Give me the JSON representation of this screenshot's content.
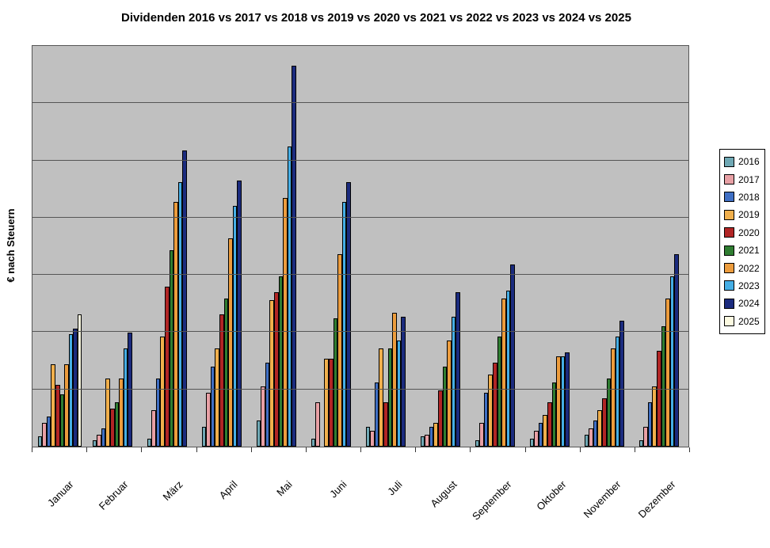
{
  "title": "Dividenden 2016 vs 2017 vs 2018 vs 2019 vs 2020 vs 2021 vs 2022 vs 2023 vs 2024 vs 2025",
  "y_axis_label": "€ nach Steuern",
  "colors": {
    "plot_background": "#C0C0C0",
    "gridline": "#555555",
    "bar_border": "#000000",
    "axis": "#333333",
    "legend_border": "#000000",
    "page_background": "#FFFFFF"
  },
  "chart_data": {
    "type": "bar",
    "title": "Dividenden 2016 vs 2017 vs 2018 vs 2019 vs 2020 vs 2021 vs 2022 vs 2023 vs 2024 vs 2025",
    "xlabel": "",
    "ylabel": "€ nach Steuern",
    "ylim": [
      0,
      100
    ],
    "ytick_labels": [],
    "grid": true,
    "y_gridline_intervals": 7,
    "legend_position": "right",
    "categories": [
      "Januar",
      "Februar",
      "März",
      "April",
      "Mai",
      "Juni",
      "Juli",
      "August",
      "September",
      "Oktober",
      "November",
      "Dezember"
    ],
    "series": [
      {
        "name": "2016",
        "color": "#6FA8B4",
        "values": [
          2.5,
          1.5,
          2,
          5,
          6.5,
          2,
          5,
          2.5,
          1.5,
          2,
          3,
          1.5
        ]
      },
      {
        "name": "2017",
        "color": "#E8A0A5",
        "values": [
          6,
          3,
          9,
          13.5,
          15,
          11,
          4,
          3,
          6,
          4,
          4.5,
          5
        ]
      },
      {
        "name": "2018",
        "color": "#3F6FC4",
        "values": [
          7.5,
          4.5,
          17,
          20,
          21,
          0,
          16,
          5,
          13.5,
          6,
          6.5,
          11
        ]
      },
      {
        "name": "2019",
        "color": "#F0AF4C",
        "values": [
          20.5,
          17,
          27.5,
          24.5,
          36.5,
          22,
          24.5,
          6,
          18,
          8,
          9,
          15
        ]
      },
      {
        "name": "2020",
        "color": "#B12525",
        "values": [
          15.5,
          9.5,
          40,
          33,
          38.5,
          22,
          11,
          14,
          21,
          11,
          12,
          24
        ]
      },
      {
        "name": "2021",
        "color": "#2F7D31",
        "values": [
          13,
          11,
          49,
          37,
          42.5,
          32,
          24.5,
          20,
          27.5,
          16,
          17,
          30
        ]
      },
      {
        "name": "2022",
        "color": "#EC9C3D",
        "values": [
          20.5,
          17,
          61,
          52,
          62,
          48,
          33.5,
          26.5,
          37,
          22.5,
          24.5,
          37
        ]
      },
      {
        "name": "2023",
        "color": "#45AEE5",
        "values": [
          28,
          24.5,
          66,
          60,
          75,
          61,
          26.5,
          32.5,
          39,
          22.5,
          27.5,
          42.5
        ]
      },
      {
        "name": "2024",
        "color": "#1B2B7E",
        "values": [
          29.5,
          28.5,
          74,
          66.5,
          95,
          66,
          32.5,
          38.5,
          45.5,
          23.5,
          31.5,
          48
        ]
      },
      {
        "name": "2025",
        "color": "#FCFAE1",
        "values": [
          33,
          0,
          0,
          0,
          0,
          0,
          0,
          0,
          0,
          0,
          0,
          0
        ]
      }
    ]
  }
}
